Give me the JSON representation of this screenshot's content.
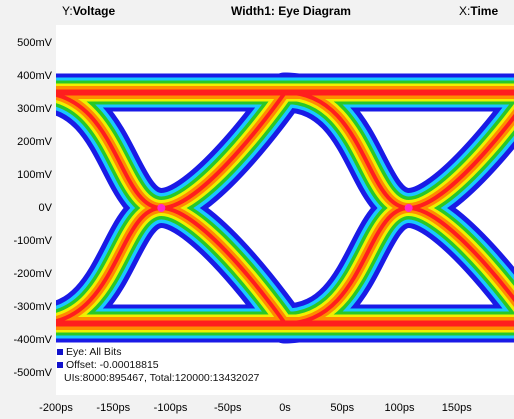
{
  "header": {
    "y_prefix": "Y:",
    "y_label": "Voltage",
    "title": "Width1: Eye Diagram",
    "x_prefix": "X:",
    "x_label": "Time"
  },
  "info": {
    "eye_label": "Eye: All Bits",
    "offset_label": "Offset: -0.00018815",
    "ui_label": "UIs:8000:895467, Total:120000:13432027"
  },
  "colors": {
    "outer": "#1a1ae6",
    "cyan": "#19c8ff",
    "green": "#28c828",
    "yellow": "#f0f000",
    "orange": "#ff8c00",
    "red": "#ff1e1e",
    "crossing": "#ff28c8"
  },
  "chart_data": {
    "type": "heatmap",
    "title": "Width1: Eye Diagram",
    "xlabel": "Time",
    "ylabel": "Voltage",
    "x_unit": "ps",
    "y_unit": "mV",
    "xlim": [
      -200,
      200
    ],
    "ylim": [
      -530,
      530
    ],
    "x_ticks": [
      -200,
      -150,
      -100,
      -50,
      0,
      50,
      100,
      150
    ],
    "x_tick_labels": [
      "-200ps",
      "-150ps",
      "-100ps",
      "-50ps",
      "0s",
      "50ps",
      "100ps",
      "150ps"
    ],
    "y_ticks": [
      500,
      400,
      300,
      200,
      100,
      0,
      -100,
      -200,
      -300,
      -400,
      -500
    ],
    "y_tick_labels": [
      "500mV",
      "400mV",
      "300mV",
      "200mV",
      "100mV",
      "0V",
      "-100mV",
      "-200mV",
      "-300mV",
      "-400mV",
      "-500mV"
    ],
    "grid": false,
    "eye": {
      "high_level_mV": 350,
      "low_level_mV": -350,
      "crossings_ps": [
        -108,
        108
      ],
      "crossing_level_mV": 0,
      "unit_interval_ps": 216
    }
  }
}
